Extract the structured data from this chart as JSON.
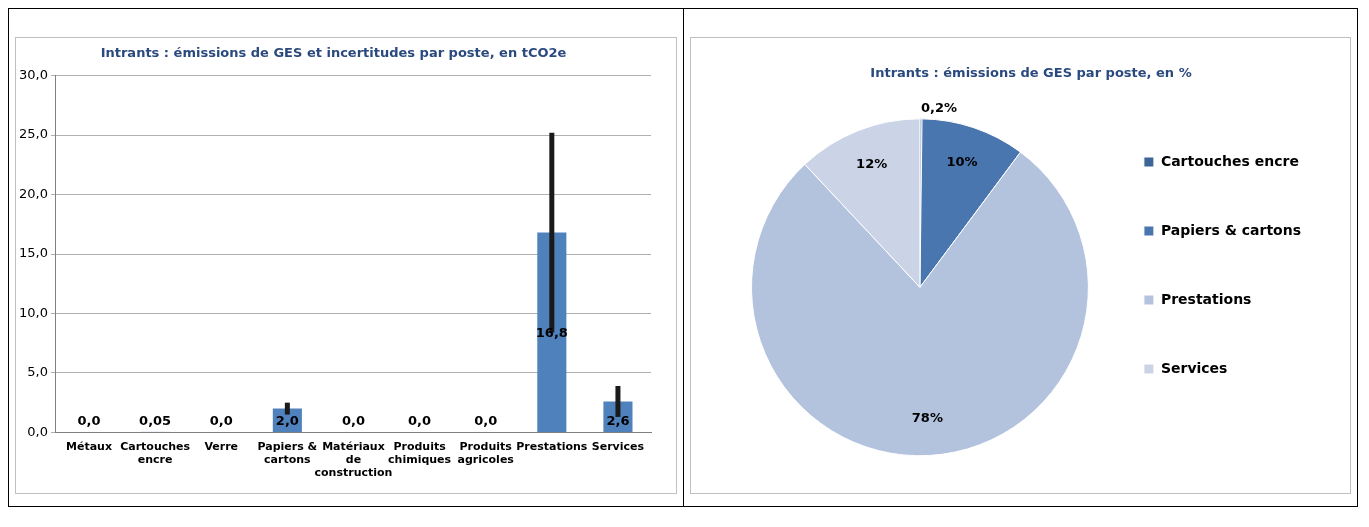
{
  "chart_data": [
    {
      "type": "bar",
      "title": "Intrants : émissions de GES et incertitudes par poste, en tCO2e",
      "categories": [
        "Métaux",
        "Cartouches encre",
        "Verre",
        "Papiers & cartons",
        "Matériaux de construction",
        "Produits chimiques",
        "Produits agricoles",
        "Prestations",
        "Services"
      ],
      "values": [
        0,
        0.05,
        0,
        2.0,
        0,
        0,
        0,
        16.8,
        2.6
      ],
      "colors": [
        "#4f81bd",
        "#b9cde5",
        "#4f81bd",
        "#4f81bd",
        "#4f81bd",
        "#4f81bd",
        "#4f81bd",
        "#4f81bd",
        "#4f81bd"
      ],
      "errors": [
        null,
        null,
        null,
        0.5,
        null,
        null,
        null,
        8.4,
        1.3
      ],
      "value_labels": [
        "0,0",
        "0,05",
        "0,0",
        "2,0",
        "0,0",
        "0,0",
        "0,0",
        "16,8",
        "2,6"
      ],
      "ylim": [
        0,
        30
      ],
      "yticks": [
        {
          "value": 0,
          "label": "0,0"
        },
        {
          "value": 5,
          "label": "5,0"
        },
        {
          "value": 10,
          "label": "10,0"
        },
        {
          "value": 15,
          "label": "15,0"
        },
        {
          "value": 20,
          "label": "20,0"
        },
        {
          "value": 25,
          "label": "25,0"
        },
        {
          "value": 30,
          "label": "30,0"
        }
      ],
      "grid": "y"
    },
    {
      "type": "pie",
      "title": "Intrants : émissions de GES par poste, en %",
      "categories": [
        "Cartouches encre",
        "Papiers & cartons",
        "Prestations",
        "Services"
      ],
      "values": [
        0.2,
        10,
        78,
        12
      ],
      "colors": [
        "#3c6497",
        "#4a76b0",
        "#b4c3dd",
        "#cad4e6"
      ],
      "value_labels": [
        "0,2%",
        "10%",
        "78%",
        "12%"
      ],
      "legend": "right"
    }
  ]
}
